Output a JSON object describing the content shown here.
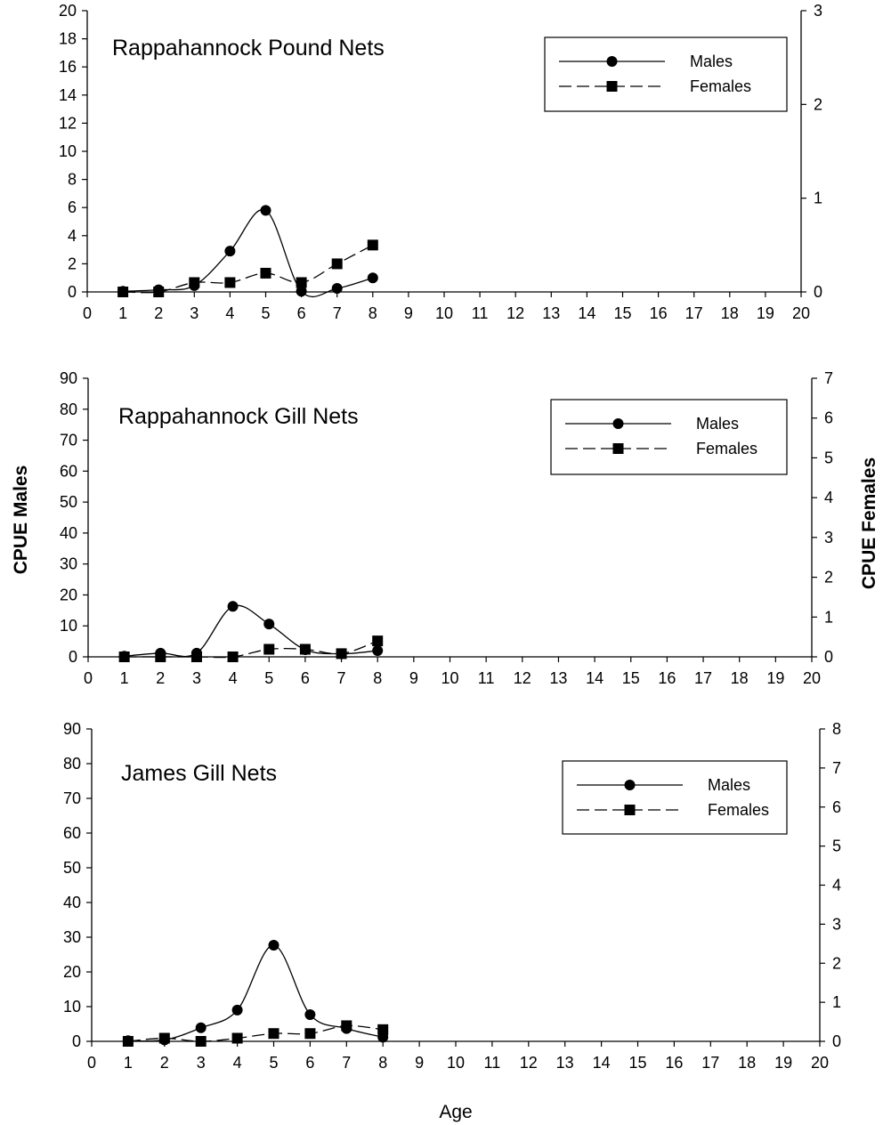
{
  "figure": {
    "ylabel_left": "CPUE Males",
    "ylabel_right": "CPUE Females",
    "xlabel": "Age"
  },
  "chart_data": [
    {
      "type": "line",
      "title": "Rappahannock Pound Nets",
      "x_ticks": [
        0,
        1,
        2,
        3,
        4,
        5,
        6,
        7,
        8,
        9,
        10,
        11,
        12,
        13,
        14,
        15,
        16,
        17,
        18,
        19,
        20
      ],
      "x": [
        1,
        2,
        3,
        4,
        5,
        6,
        7,
        8
      ],
      "xlim": [
        0,
        20
      ],
      "ylim_left": [
        0,
        20
      ],
      "yticks_left": [
        0,
        2,
        4,
        6,
        8,
        10,
        12,
        14,
        16,
        18,
        20
      ],
      "ylim_right": [
        0,
        3
      ],
      "yticks_right": [
        0,
        1,
        2,
        3
      ],
      "legend": "top-right",
      "grid": false,
      "series": [
        {
          "name": "Males",
          "marker": "circle",
          "line": "solid",
          "axis": "left",
          "values": [
            0.05,
            0.15,
            0.45,
            2.9,
            5.8,
            0.05,
            0.25,
            1.0
          ]
        },
        {
          "name": "Females",
          "marker": "square",
          "line": "dashed",
          "axis": "right",
          "values": [
            0.0,
            0.0,
            0.1,
            0.1,
            0.2,
            0.1,
            0.3,
            0.5
          ]
        }
      ]
    },
    {
      "type": "line",
      "title": "Rappahannock Gill Nets",
      "x_ticks": [
        0,
        1,
        2,
        3,
        4,
        5,
        6,
        7,
        8,
        9,
        10,
        11,
        12,
        13,
        14,
        15,
        16,
        17,
        18,
        19,
        20
      ],
      "x": [
        1,
        2,
        3,
        4,
        5,
        6,
        7,
        8
      ],
      "xlim": [
        0,
        20
      ],
      "ylim_left": [
        0,
        90
      ],
      "yticks_left": [
        0,
        10,
        20,
        30,
        40,
        50,
        60,
        70,
        80,
        90
      ],
      "ylim_right": [
        0,
        7
      ],
      "yticks_right": [
        0,
        1,
        2,
        3,
        4,
        5,
        6,
        7
      ],
      "legend": "top-right",
      "grid": false,
      "series": [
        {
          "name": "Males",
          "marker": "circle",
          "line": "solid",
          "axis": "left",
          "values": [
            0.2,
            1.2,
            1.2,
            16.3,
            10.6,
            2.3,
            1.0,
            2.0
          ]
        },
        {
          "name": "Females",
          "marker": "square",
          "line": "dashed",
          "axis": "right",
          "values": [
            0.0,
            0.0,
            0.0,
            0.0,
            0.19,
            0.19,
            0.08,
            0.4
          ]
        }
      ]
    },
    {
      "type": "line",
      "title": "James Gill Nets",
      "x_ticks": [
        0,
        1,
        2,
        3,
        4,
        5,
        6,
        7,
        8,
        9,
        10,
        11,
        12,
        13,
        14,
        15,
        16,
        17,
        18,
        19,
        20
      ],
      "x": [
        1,
        2,
        3,
        4,
        5,
        6,
        7,
        8
      ],
      "xlim": [
        0,
        20
      ],
      "ylim_left": [
        0,
        90
      ],
      "yticks_left": [
        0,
        10,
        20,
        30,
        40,
        50,
        60,
        70,
        80,
        90
      ],
      "ylim_right": [
        0,
        8
      ],
      "yticks_right": [
        0,
        1,
        2,
        3,
        4,
        5,
        6,
        7,
        8
      ],
      "legend": "top-right",
      "grid": false,
      "series": [
        {
          "name": "Males",
          "marker": "circle",
          "line": "solid",
          "axis": "left",
          "values": [
            0.2,
            0.4,
            3.9,
            9.0,
            27.7,
            7.7,
            3.7,
            1.2
          ]
        },
        {
          "name": "Females",
          "marker": "square",
          "line": "dashed",
          "axis": "right",
          "values": [
            0.0,
            0.08,
            0.0,
            0.08,
            0.2,
            0.2,
            0.4,
            0.3
          ]
        }
      ]
    }
  ]
}
